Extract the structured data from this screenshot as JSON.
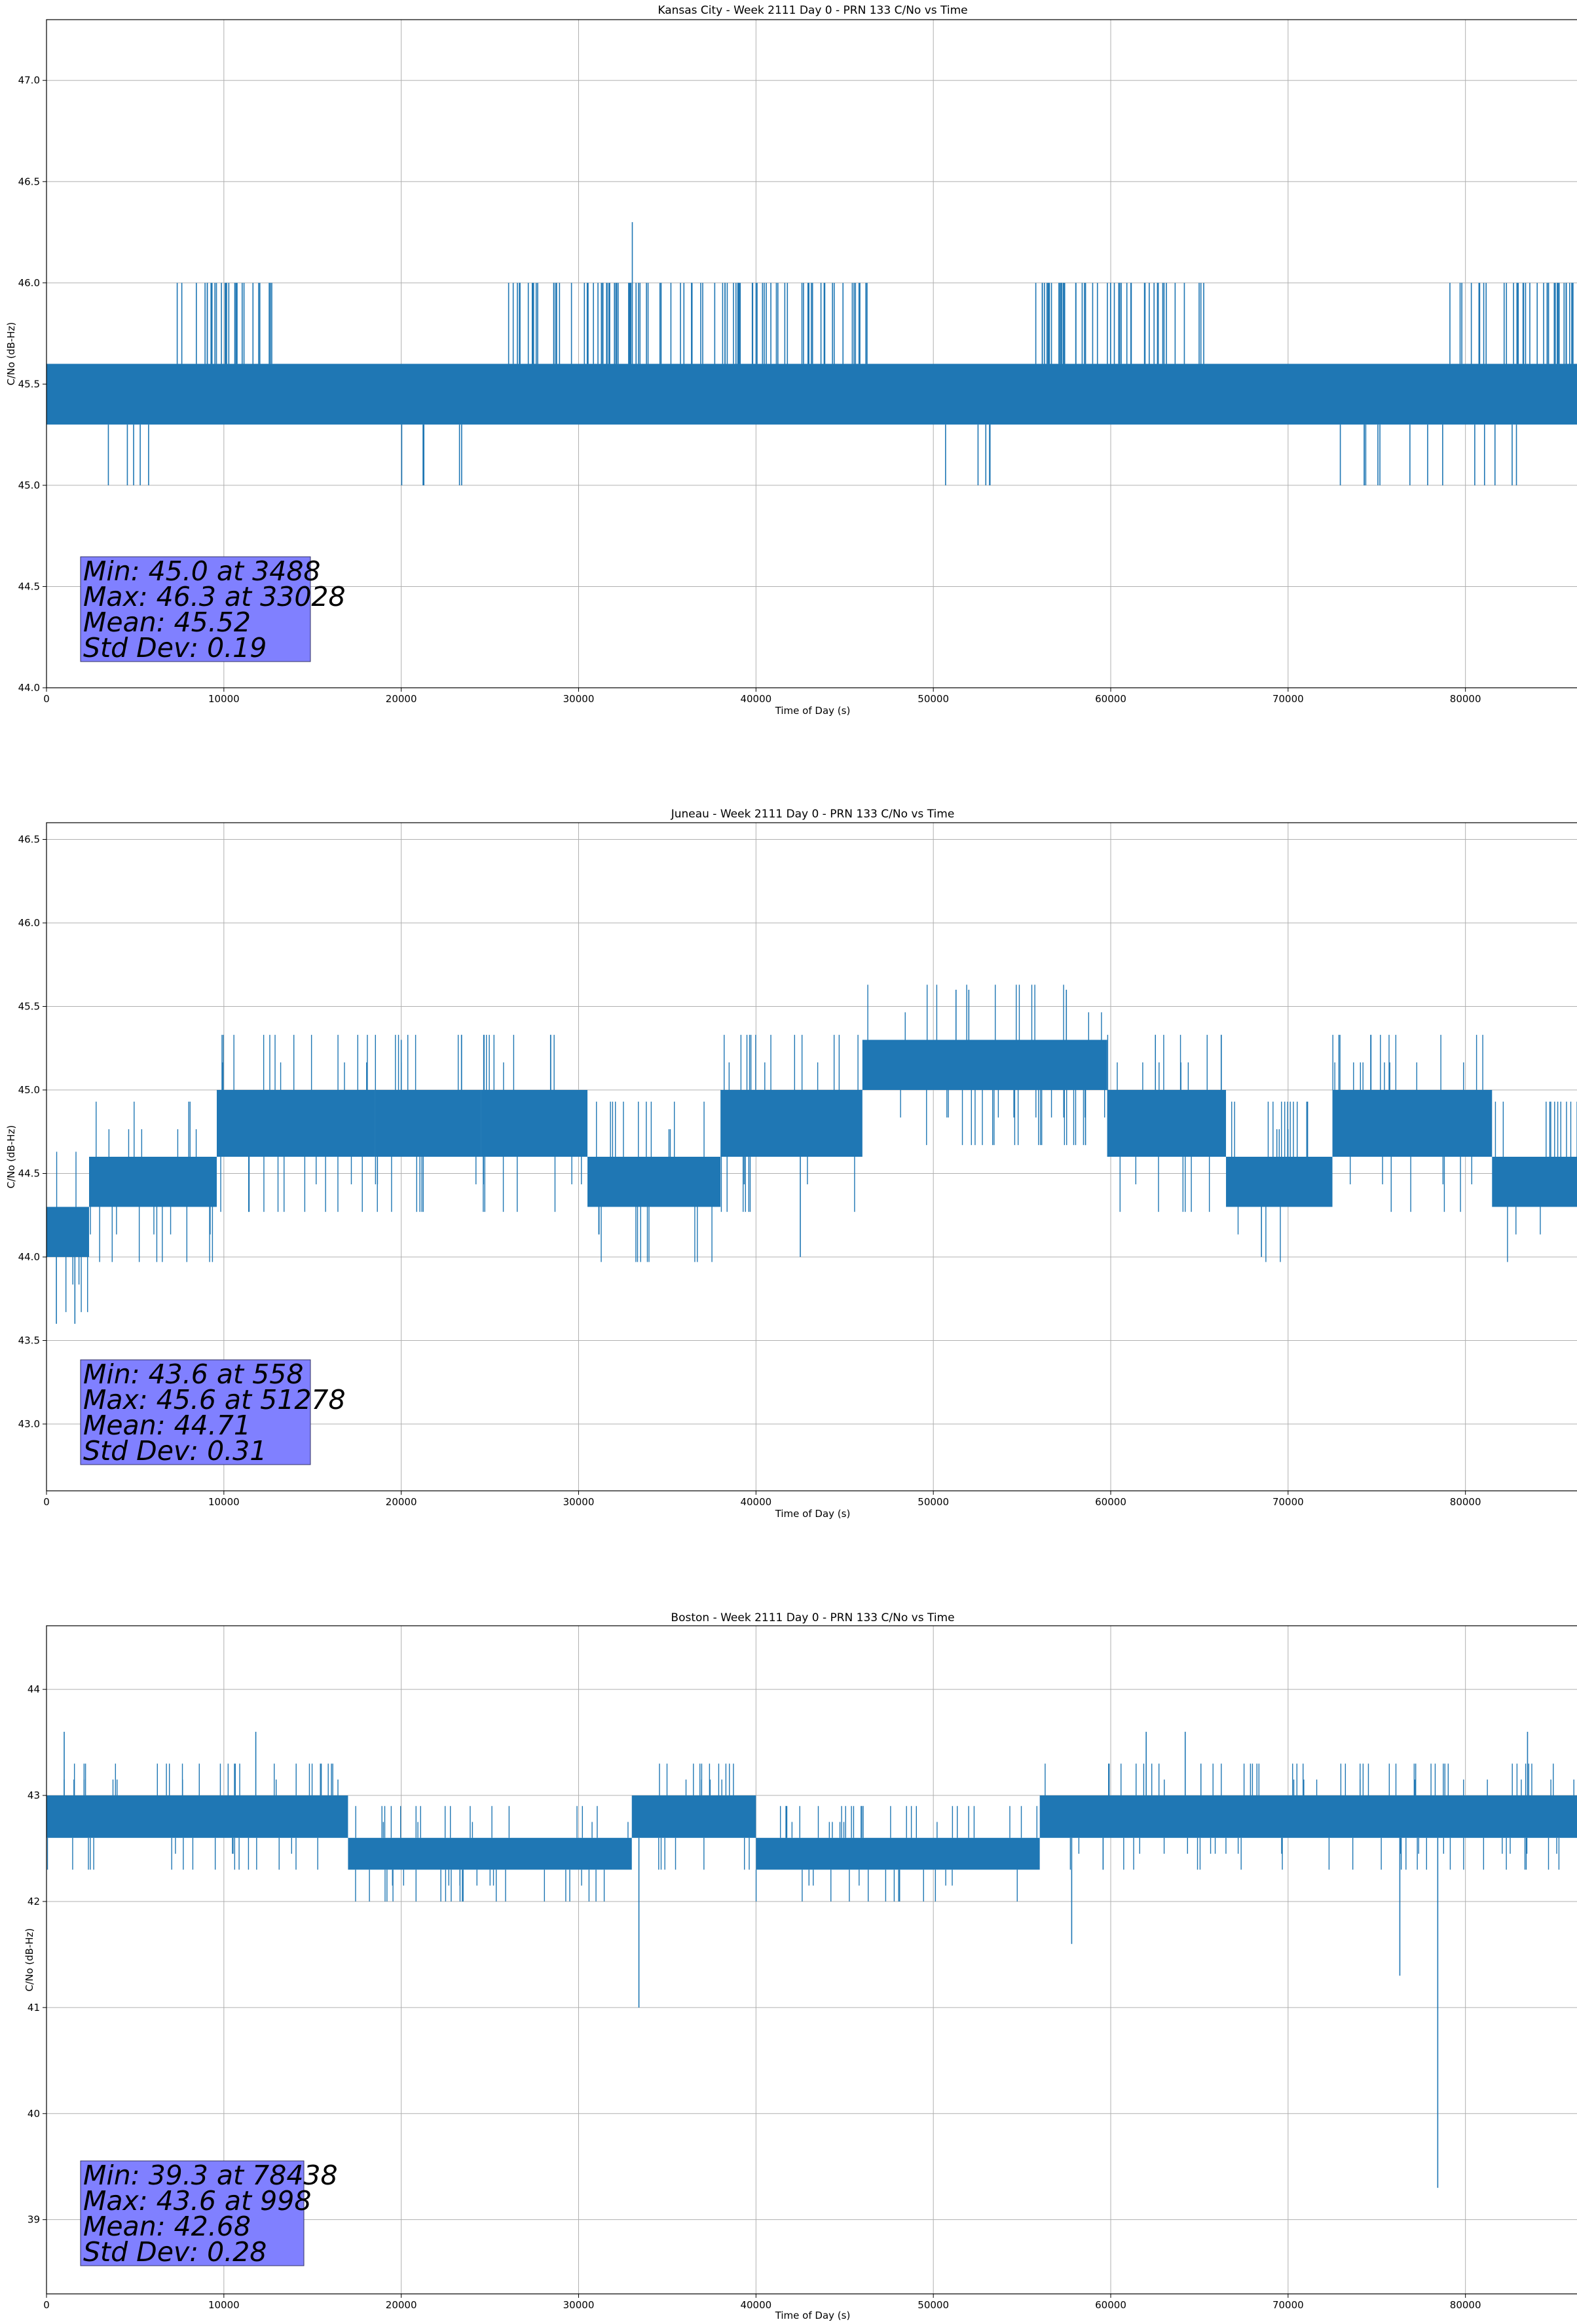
{
  "figure": {
    "colors": {
      "series": "#1f77b4",
      "grid": "#b0b0b0",
      "stats_box": "#8080ff",
      "stats_edge": "#333366"
    }
  },
  "chart_data": [
    {
      "type": "line",
      "title": "Kansas City - Week 2111 Day 0 - PRN 133 C/No vs Time",
      "xlabel": "Time of Day (s)",
      "ylabel": "C/No (dB-Hz)",
      "xlim": [
        0,
        86400
      ],
      "ylim": [
        44.0,
        47.3
      ],
      "xticks": [
        0,
        10000,
        20000,
        30000,
        40000,
        50000,
        60000,
        70000,
        80000
      ],
      "yticks": [
        44.0,
        44.5,
        45.0,
        45.5,
        46.0,
        46.5,
        47.0
      ],
      "ytick_decimals": 1,
      "grid": true,
      "series": [
        {
          "name": "PRN 133 C/No",
          "base": [
            45.3,
            45.6
          ],
          "high_segments": [
            [
              7200,
              12800,
              46.0
            ],
            [
              26000,
              29800,
              46.0
            ],
            [
              30200,
              46500,
              46.0
            ],
            [
              55500,
              65500,
              46.0
            ],
            [
              79000,
              86400,
              46.0
            ]
          ],
          "low_segments": [
            [
              3000,
              6000,
              45.0
            ],
            [
              19000,
              24000,
              45.0
            ],
            [
              49500,
              54000,
              45.0
            ],
            [
              70500,
              84000,
              45.0
            ]
          ],
          "spikes": [
            [
              33028,
              46.3
            ],
            [
              3488,
              45.0
            ]
          ]
        }
      ],
      "stats": [
        "Min: 45.0 at 3488",
        "Max: 46.3 at 33028",
        "Mean: 45.52",
        "Std Dev: 0.19"
      ]
    },
    {
      "type": "line",
      "title": "Juneau - Week 2111 Day 0 - PRN 133 C/No vs Time",
      "xlabel": "Time of Day (s)",
      "ylabel": "C/No (dB-Hz)",
      "xlim": [
        0,
        86400
      ],
      "ylim": [
        42.6,
        46.6
      ],
      "xticks": [
        0,
        10000,
        20000,
        30000,
        40000,
        50000,
        60000,
        70000,
        80000
      ],
      "yticks": [
        43.0,
        43.5,
        44.0,
        44.5,
        45.0,
        45.5,
        46.0,
        46.5
      ],
      "ytick_decimals": 1,
      "grid": true,
      "series": [
        {
          "name": "PRN 133 C/No",
          "levels": [
            [
              0,
              2400,
              44.0,
              44.3
            ],
            [
              2400,
              9600,
              44.3,
              44.6
            ],
            [
              9600,
              18500,
              44.6,
              45.0
            ],
            [
              18500,
              24500,
              44.6,
              45.0
            ],
            [
              24500,
              30500,
              44.6,
              45.0
            ],
            [
              30500,
              38000,
              44.3,
              44.6
            ],
            [
              38000,
              46000,
              44.6,
              45.0
            ],
            [
              46000,
              59800,
              45.0,
              45.3
            ],
            [
              59800,
              66500,
              44.6,
              45.0
            ],
            [
              66500,
              72500,
              44.3,
              44.6
            ],
            [
              72500,
              81500,
              44.6,
              45.0
            ],
            [
              81500,
              86400,
              44.3,
              44.6
            ]
          ],
          "spikes": [
            [
              558,
              43.6
            ],
            [
              1600,
              43.6
            ],
            [
              51278,
              45.6
            ],
            [
              52000,
              45.6
            ],
            [
              57500,
              45.6
            ],
            [
              20000,
              45.3
            ],
            [
              42500,
              44.0
            ],
            [
              68500,
              44.0
            ]
          ]
        }
      ],
      "stats": [
        "Min: 43.6 at 558",
        "Max: 45.6 at 51278",
        "Mean: 44.71",
        "Std Dev: 0.31"
      ]
    },
    {
      "type": "line",
      "title": "Boston - Week 2111 Day 0 - PRN 133 C/No vs Time",
      "xlabel": "Time of Day (s)",
      "ylabel": "C/No (dB-Hz)",
      "xlim": [
        0,
        86400
      ],
      "ylim": [
        38.3,
        44.6
      ],
      "xticks": [
        0,
        10000,
        20000,
        30000,
        40000,
        50000,
        60000,
        70000,
        80000
      ],
      "yticks": [
        39,
        40,
        41,
        42,
        43,
        44
      ],
      "ytick_decimals": 0,
      "grid": true,
      "series": [
        {
          "name": "PRN 133 C/No",
          "levels": [
            [
              0,
              17000,
              42.6,
              43.0
            ],
            [
              17000,
              33000,
              42.3,
              42.6
            ],
            [
              33000,
              40000,
              42.6,
              43.0
            ],
            [
              40000,
              56000,
              42.3,
              42.6
            ],
            [
              56000,
              86400,
              42.6,
              43.0
            ]
          ],
          "spikes": [
            [
              998,
              43.6
            ],
            [
              11800,
              43.6
            ],
            [
              33400,
              41.0
            ],
            [
              57800,
              41.6
            ],
            [
              76300,
              41.3
            ],
            [
              78438,
              39.3
            ],
            [
              62000,
              43.6
            ],
            [
              64200,
              43.6
            ],
            [
              83500,
              43.6
            ]
          ]
        }
      ],
      "stats": [
        "Min: 39.3 at 78438",
        "Max: 43.6 at 998",
        "Mean: 42.68",
        "Std Dev: 0.28"
      ]
    }
  ]
}
